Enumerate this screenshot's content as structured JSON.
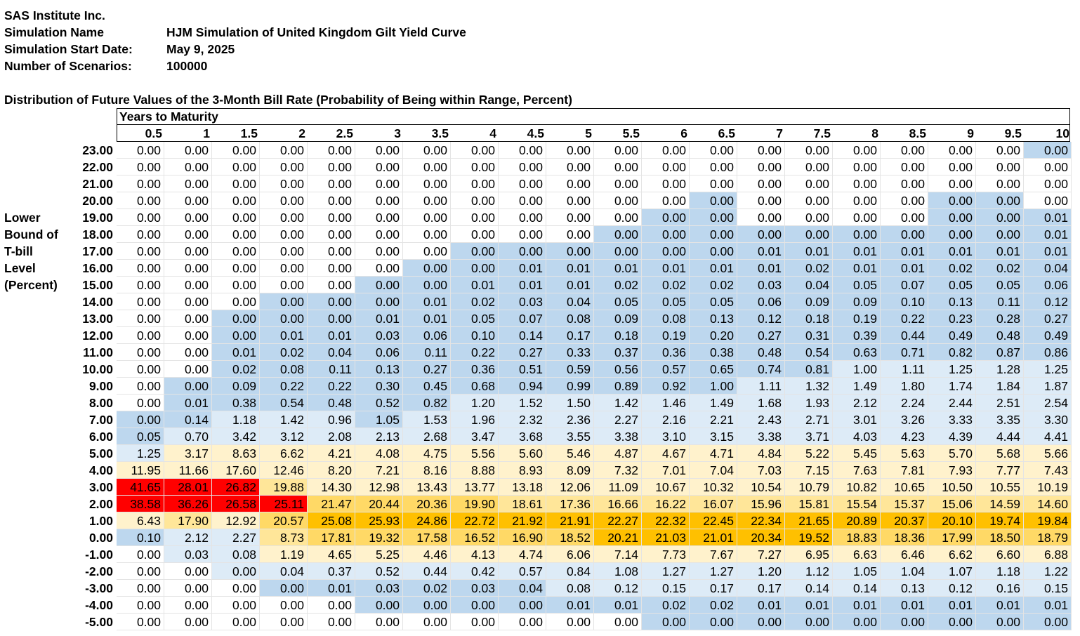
{
  "meta": {
    "company": "SAS Institute Inc.",
    "sim_name_label": "Simulation Name",
    "sim_name_value": "HJM Simulation of United Kingdom Gilt Yield Curve",
    "start_label": "Simulation Start Date:",
    "start_value": "May 9, 2025",
    "scen_label": "Number of Scenarios:",
    "scen_value": "100000"
  },
  "table_title": "Distribution of Future Values of the 3-Month Bill Rate (Probability of Being within Range, Percent)",
  "header_group": "Years to Maturity",
  "row_axis_label": [
    "Lower",
    "Bound of",
    "T-bill",
    "Level",
    "(Percent)"
  ],
  "columns": [
    "0.5",
    "1",
    "1.5",
    "2",
    "2.5",
    "3",
    "3.5",
    "4",
    "4.5",
    "5",
    "5.5",
    "6",
    "6.5",
    "7",
    "7.5",
    "8",
    "8.5",
    "9",
    "9.5",
    "10"
  ],
  "rows": [
    "23.00",
    "22.00",
    "21.00",
    "20.00",
    "19.00",
    "18.00",
    "17.00",
    "16.00",
    "15.00",
    "14.00",
    "13.00",
    "12.00",
    "11.00",
    "10.00",
    "9.00",
    "8.00",
    "7.00",
    "6.00",
    "5.00",
    "4.00",
    "3.00",
    "2.00",
    "1.00",
    "0.00",
    "-1.00",
    "-2.00",
    "-3.00",
    "-4.00",
    "-5.00"
  ],
  "colors": {
    "none": "#ffffff",
    "light_blue": "#bdd7ee",
    "pale_blue": "#ddebf7",
    "pale_yellow": "#fff2cc",
    "light_yellow": "#ffe699",
    "yellow": "#ffd966",
    "orange": "#ffc000",
    "red": "#ff0000"
  },
  "values": [
    [
      "0.00",
      "0.00",
      "0.00",
      "0.00",
      "0.00",
      "0.00",
      "0.00",
      "0.00",
      "0.00",
      "0.00",
      "0.00",
      "0.00",
      "0.00",
      "0.00",
      "0.00",
      "0.00",
      "0.00",
      "0.00",
      "0.00",
      "0.00"
    ],
    [
      "0.00",
      "0.00",
      "0.00",
      "0.00",
      "0.00",
      "0.00",
      "0.00",
      "0.00",
      "0.00",
      "0.00",
      "0.00",
      "0.00",
      "0.00",
      "0.00",
      "0.00",
      "0.00",
      "0.00",
      "0.00",
      "0.00",
      "0.00"
    ],
    [
      "0.00",
      "0.00",
      "0.00",
      "0.00",
      "0.00",
      "0.00",
      "0.00",
      "0.00",
      "0.00",
      "0.00",
      "0.00",
      "0.00",
      "0.00",
      "0.00",
      "0.00",
      "0.00",
      "0.00",
      "0.00",
      "0.00",
      "0.00"
    ],
    [
      "0.00",
      "0.00",
      "0.00",
      "0.00",
      "0.00",
      "0.00",
      "0.00",
      "0.00",
      "0.00",
      "0.00",
      "0.00",
      "0.00",
      "0.00",
      "0.00",
      "0.00",
      "0.00",
      "0.00",
      "0.00",
      "0.00",
      "0.00"
    ],
    [
      "0.00",
      "0.00",
      "0.00",
      "0.00",
      "0.00",
      "0.00",
      "0.00",
      "0.00",
      "0.00",
      "0.00",
      "0.00",
      "0.00",
      "0.00",
      "0.00",
      "0.00",
      "0.00",
      "0.00",
      "0.00",
      "0.00",
      "0.01"
    ],
    [
      "0.00",
      "0.00",
      "0.00",
      "0.00",
      "0.00",
      "0.00",
      "0.00",
      "0.00",
      "0.00",
      "0.00",
      "0.00",
      "0.00",
      "0.00",
      "0.00",
      "0.00",
      "0.00",
      "0.00",
      "0.00",
      "0.00",
      "0.01"
    ],
    [
      "0.00",
      "0.00",
      "0.00",
      "0.00",
      "0.00",
      "0.00",
      "0.00",
      "0.00",
      "0.00",
      "0.00",
      "0.00",
      "0.00",
      "0.00",
      "0.01",
      "0.01",
      "0.01",
      "0.01",
      "0.01",
      "0.01",
      "0.01"
    ],
    [
      "0.00",
      "0.00",
      "0.00",
      "0.00",
      "0.00",
      "0.00",
      "0.00",
      "0.00",
      "0.01",
      "0.01",
      "0.01",
      "0.01",
      "0.01",
      "0.01",
      "0.02",
      "0.01",
      "0.01",
      "0.02",
      "0.02",
      "0.04"
    ],
    [
      "0.00",
      "0.00",
      "0.00",
      "0.00",
      "0.00",
      "0.00",
      "0.00",
      "0.01",
      "0.01",
      "0.01",
      "0.02",
      "0.02",
      "0.02",
      "0.03",
      "0.04",
      "0.05",
      "0.07",
      "0.05",
      "0.05",
      "0.06"
    ],
    [
      "0.00",
      "0.00",
      "0.00",
      "0.00",
      "0.00",
      "0.00",
      "0.01",
      "0.02",
      "0.03",
      "0.04",
      "0.05",
      "0.05",
      "0.05",
      "0.06",
      "0.09",
      "0.09",
      "0.10",
      "0.13",
      "0.11",
      "0.12"
    ],
    [
      "0.00",
      "0.00",
      "0.00",
      "0.00",
      "0.00",
      "0.01",
      "0.01",
      "0.05",
      "0.07",
      "0.08",
      "0.09",
      "0.08",
      "0.13",
      "0.12",
      "0.18",
      "0.19",
      "0.22",
      "0.23",
      "0.28",
      "0.27"
    ],
    [
      "0.00",
      "0.00",
      "0.00",
      "0.01",
      "0.01",
      "0.03",
      "0.06",
      "0.10",
      "0.14",
      "0.17",
      "0.18",
      "0.19",
      "0.20",
      "0.27",
      "0.31",
      "0.39",
      "0.44",
      "0.49",
      "0.48",
      "0.49"
    ],
    [
      "0.00",
      "0.00",
      "0.01",
      "0.02",
      "0.04",
      "0.06",
      "0.11",
      "0.22",
      "0.27",
      "0.33",
      "0.37",
      "0.36",
      "0.38",
      "0.48",
      "0.54",
      "0.63",
      "0.71",
      "0.82",
      "0.87",
      "0.86"
    ],
    [
      "0.00",
      "0.00",
      "0.02",
      "0.08",
      "0.11",
      "0.13",
      "0.27",
      "0.36",
      "0.51",
      "0.59",
      "0.56",
      "0.57",
      "0.65",
      "0.74",
      "0.81",
      "1.00",
      "1.11",
      "1.25",
      "1.28",
      "1.25"
    ],
    [
      "0.00",
      "0.00",
      "0.09",
      "0.22",
      "0.22",
      "0.30",
      "0.45",
      "0.68",
      "0.94",
      "0.99",
      "0.89",
      "0.92",
      "1.00",
      "1.11",
      "1.32",
      "1.49",
      "1.80",
      "1.74",
      "1.84",
      "1.87"
    ],
    [
      "0.00",
      "0.01",
      "0.38",
      "0.54",
      "0.48",
      "0.52",
      "0.82",
      "1.20",
      "1.52",
      "1.50",
      "1.42",
      "1.46",
      "1.49",
      "1.68",
      "1.93",
      "2.12",
      "2.24",
      "2.44",
      "2.51",
      "2.54"
    ],
    [
      "0.00",
      "0.14",
      "1.18",
      "1.42",
      "0.96",
      "1.05",
      "1.53",
      "1.96",
      "2.32",
      "2.36",
      "2.27",
      "2.16",
      "2.21",
      "2.43",
      "2.71",
      "3.01",
      "3.26",
      "3.33",
      "3.35",
      "3.30"
    ],
    [
      "0.05",
      "0.70",
      "3.42",
      "3.12",
      "2.08",
      "2.13",
      "2.68",
      "3.47",
      "3.68",
      "3.55",
      "3.38",
      "3.10",
      "3.15",
      "3.38",
      "3.71",
      "4.03",
      "4.23",
      "4.39",
      "4.44",
      "4.41"
    ],
    [
      "1.25",
      "3.17",
      "8.63",
      "6.62",
      "4.21",
      "4.08",
      "4.75",
      "5.56",
      "5.60",
      "5.46",
      "4.87",
      "4.67",
      "4.71",
      "4.84",
      "5.22",
      "5.45",
      "5.63",
      "5.70",
      "5.68",
      "5.66"
    ],
    [
      "11.95",
      "11.66",
      "17.60",
      "12.46",
      "8.20",
      "7.21",
      "8.16",
      "8.88",
      "8.93",
      "8.09",
      "7.32",
      "7.01",
      "7.04",
      "7.03",
      "7.15",
      "7.63",
      "7.81",
      "7.93",
      "7.77",
      "7.43"
    ],
    [
      "41.65",
      "28.01",
      "26.82",
      "19.88",
      "14.30",
      "12.98",
      "13.43",
      "13.77",
      "13.18",
      "12.06",
      "11.09",
      "10.67",
      "10.32",
      "10.54",
      "10.79",
      "10.82",
      "10.65",
      "10.50",
      "10.55",
      "10.19"
    ],
    [
      "38.58",
      "36.26",
      "26.58",
      "25.11",
      "21.47",
      "20.44",
      "20.36",
      "19.90",
      "18.61",
      "17.36",
      "16.66",
      "16.22",
      "16.07",
      "15.96",
      "15.81",
      "15.54",
      "15.37",
      "15.06",
      "14.59",
      "14.60"
    ],
    [
      "6.43",
      "17.90",
      "12.92",
      "20.57",
      "25.08",
      "25.93",
      "24.86",
      "22.72",
      "21.92",
      "21.91",
      "22.27",
      "22.32",
      "22.45",
      "22.34",
      "21.65",
      "20.89",
      "20.37",
      "20.10",
      "19.74",
      "19.84"
    ],
    [
      "0.10",
      "2.12",
      "2.27",
      "8.73",
      "17.81",
      "19.32",
      "17.58",
      "16.52",
      "16.90",
      "18.52",
      "20.21",
      "21.03",
      "21.01",
      "20.34",
      "19.52",
      "18.83",
      "18.36",
      "17.99",
      "18.50",
      "18.79"
    ],
    [
      "0.00",
      "0.03",
      "0.08",
      "1.19",
      "4.65",
      "5.25",
      "4.46",
      "4.13",
      "4.74",
      "6.06",
      "7.14",
      "7.73",
      "7.67",
      "7.27",
      "6.95",
      "6.63",
      "6.46",
      "6.62",
      "6.60",
      "6.88"
    ],
    [
      "0.00",
      "0.00",
      "0.00",
      "0.04",
      "0.37",
      "0.52",
      "0.44",
      "0.42",
      "0.57",
      "0.84",
      "1.08",
      "1.27",
      "1.27",
      "1.20",
      "1.12",
      "1.05",
      "1.04",
      "1.07",
      "1.18",
      "1.22"
    ],
    [
      "0.00",
      "0.00",
      "0.00",
      "0.00",
      "0.01",
      "0.03",
      "0.02",
      "0.03",
      "0.04",
      "0.08",
      "0.12",
      "0.15",
      "0.17",
      "0.17",
      "0.14",
      "0.14",
      "0.13",
      "0.12",
      "0.16",
      "0.15"
    ],
    [
      "0.00",
      "0.00",
      "0.00",
      "0.00",
      "0.00",
      "0.00",
      "0.00",
      "0.00",
      "0.00",
      "0.01",
      "0.01",
      "0.02",
      "0.02",
      "0.01",
      "0.01",
      "0.01",
      "0.01",
      "0.01",
      "0.01",
      "0.01"
    ],
    [
      "0.00",
      "0.00",
      "0.00",
      "0.00",
      "0.00",
      "0.00",
      "0.00",
      "0.00",
      "0.00",
      "0.00",
      "0.00",
      "0.00",
      "0.00",
      "0.00",
      "0.00",
      "0.00",
      "0.00",
      "0.00",
      "0.00",
      "0.00"
    ]
  ],
  "fills": [
    "00000000000000000001",
    "00000000000000000000",
    "00000000000000000000",
    "00000000000010000110",
    "00000000000110000111",
    "00000000001111111111",
    "00000001111111111111",
    "00000011111111111111",
    "00000111111111111111",
    "00011111111111111111",
    "00111111111111111111",
    "00111111111111111111",
    "00111111111111111111",
    "00111111111111122222",
    "01111111111112222222",
    "01111112222222222222",
    "11222122222222222222",
    "12222222222222222222",
    "23333333333333333333",
    "33333333333333333333",
    "77743333333333333333",
    "77775555444444444444",
    "34356666666666666666",
    "12245555556666655555",
    "02233333333333333333",
    "00222222222222222222",
    "00011111122222222222",
    "00000111111111111111",
    "00000000000111111111"
  ]
}
